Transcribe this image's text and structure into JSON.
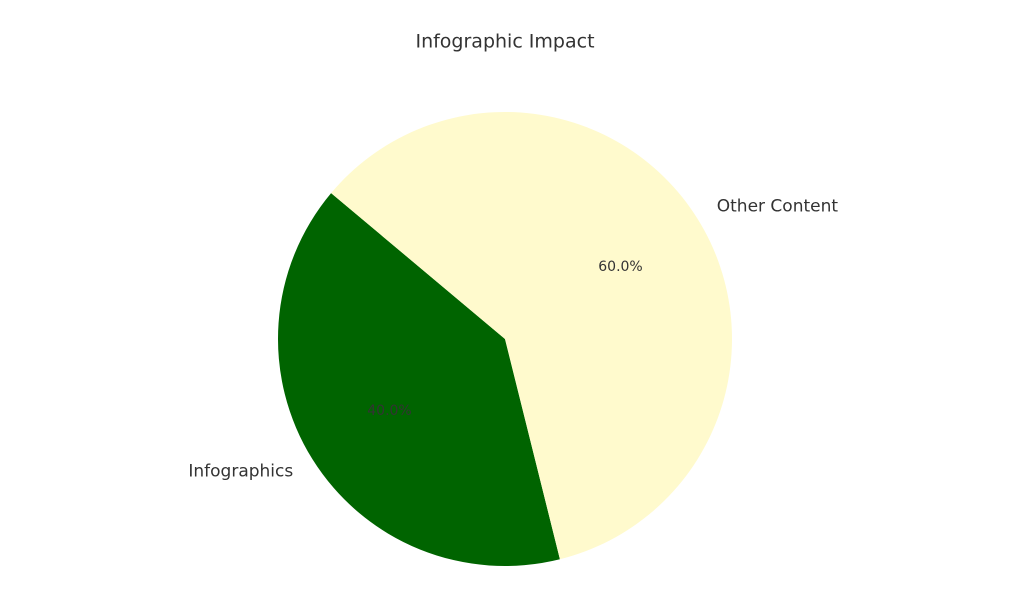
{
  "chart_data": {
    "type": "pie",
    "title": "Infographic Impact",
    "categories": [
      "Infographics",
      "Other Content"
    ],
    "values": [
      40,
      60
    ],
    "value_labels": [
      "40.0%",
      "60.0%"
    ],
    "colors": [
      "#006400",
      "#fffacd"
    ]
  }
}
